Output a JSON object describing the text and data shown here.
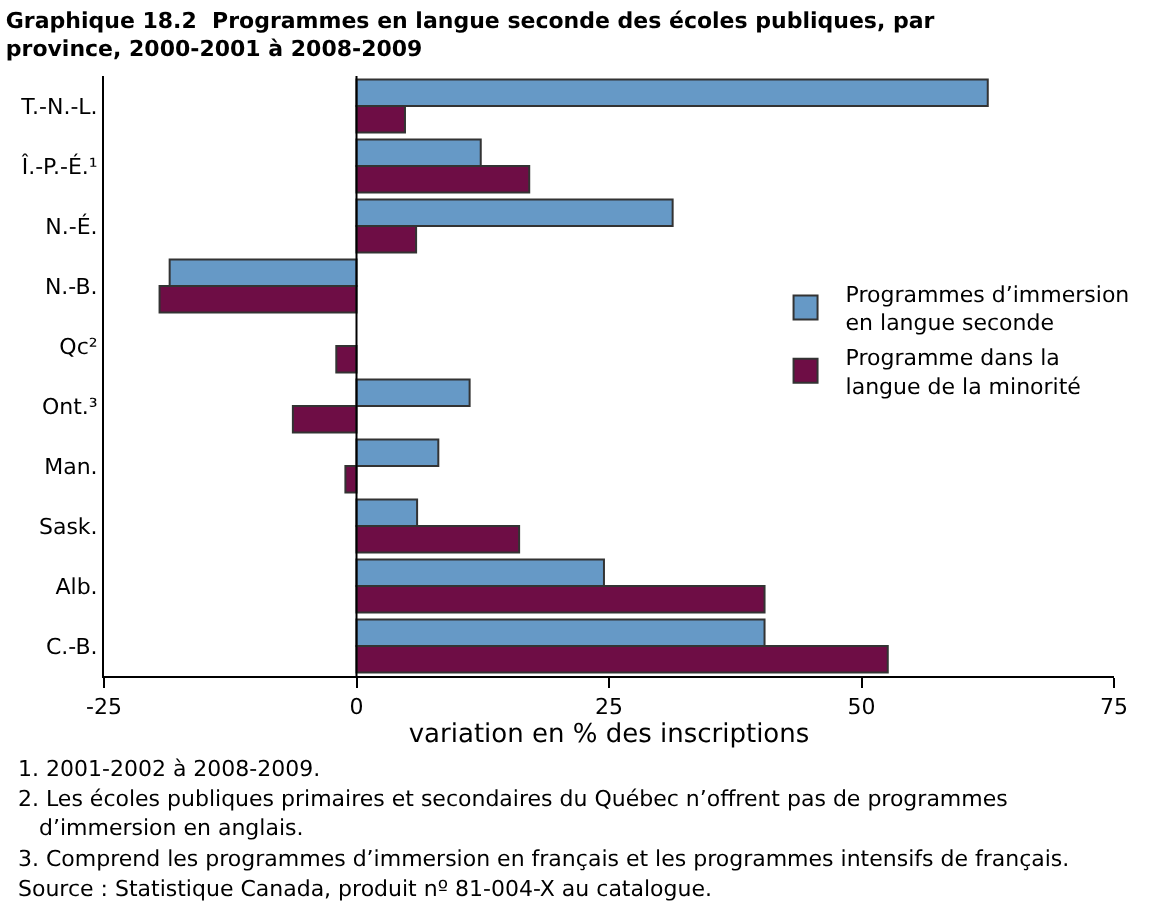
{
  "chart_data": {
    "type": "bar",
    "orientation": "horizontal",
    "title": "Graphique 18.2  Programmes en langue seconde des écoles publiques, par province, 2000-2001 à 2008-2009",
    "xlabel": "variation en % des inscriptions",
    "categories": [
      "T.-N.-L.",
      "Î.-P.-É.¹",
      "N.-É.",
      "N.-B.",
      "Qc²",
      "Ont.³",
      "Man.",
      "Sask.",
      "Alb.",
      "C.-B."
    ],
    "series": [
      {
        "name": "Programmes d’immersion en langue seconde",
        "color": "#6699c6",
        "values": [
          62.5,
          12.3,
          31.3,
          -18.5,
          null,
          11.2,
          8.1,
          6.0,
          24.5,
          40.4
        ]
      },
      {
        "name": "Programme dans la langue de la minorité",
        "color": "#6e0d45",
        "values": [
          4.8,
          17.1,
          5.9,
          -19.5,
          -2.0,
          -6.3,
          -1.1,
          16.1,
          40.4,
          52.6
        ]
      }
    ],
    "xlim": [
      -25,
      75
    ],
    "xticks": [
      -25,
      0,
      25,
      50,
      75
    ],
    "legend": "right",
    "ref_lines": [
      {
        "axis": "x",
        "value": 0,
        "color": "#000000"
      }
    ],
    "annotations": [
      "1. 2001-2002 à 2008-2009.",
      "2. Les écoles publiques primaires et secondaires du Québec n’offrent pas de programmes d’immersion en anglais.",
      "3. Comprend les programmes d’immersion en français et les programmes intensifs de français.",
      "Source : Statistique Canada, produit nº 81-004-X au catalogue."
    ]
  }
}
